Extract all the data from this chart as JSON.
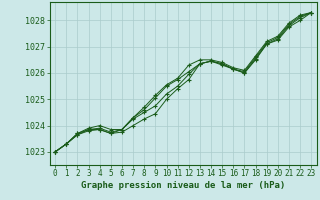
{
  "bg_color": "#cce8e8",
  "grid_color": "#aacccc",
  "line_color": "#1a5c1a",
  "marker_color": "#1a5c1a",
  "title": "Graphe pression niveau de la mer (hPa)",
  "title_color": "#1a5c1a",
  "xlim": [
    -0.5,
    23.5
  ],
  "ylim": [
    1022.5,
    1028.7
  ],
  "yticks": [
    1023,
    1024,
    1025,
    1026,
    1027,
    1028
  ],
  "xticks": [
    0,
    1,
    2,
    3,
    4,
    5,
    6,
    7,
    8,
    9,
    10,
    11,
    12,
    13,
    14,
    15,
    16,
    17,
    18,
    19,
    20,
    21,
    22,
    23
  ],
  "series": [
    [
      1023.0,
      1023.3,
      1023.7,
      1023.85,
      1023.85,
      1023.7,
      1023.75,
      1024.0,
      1024.25,
      1024.45,
      1025.0,
      1025.4,
      1025.75,
      1026.35,
      1026.45,
      1026.35,
      1026.15,
      1026.0,
      1026.5,
      1027.1,
      1027.25,
      1027.75,
      1028.0,
      1028.3
    ],
    [
      1023.0,
      1023.3,
      1023.7,
      1023.9,
      1024.0,
      1023.85,
      1023.85,
      1024.25,
      1024.5,
      1024.75,
      1025.2,
      1025.5,
      1025.95,
      1026.35,
      1026.45,
      1026.3,
      1026.15,
      1026.0,
      1026.55,
      1027.1,
      1027.3,
      1027.8,
      1028.1,
      1028.3
    ],
    [
      1023.0,
      1023.3,
      1023.65,
      1023.85,
      1023.9,
      1023.75,
      1023.85,
      1024.3,
      1024.6,
      1025.05,
      1025.5,
      1025.75,
      1026.05,
      1026.35,
      1026.45,
      1026.35,
      1026.15,
      1026.05,
      1026.6,
      1027.15,
      1027.35,
      1027.85,
      1028.15,
      1028.3
    ],
    [
      1023.0,
      1023.3,
      1023.65,
      1023.8,
      1023.85,
      1023.7,
      1023.85,
      1024.3,
      1024.7,
      1025.15,
      1025.55,
      1025.8,
      1026.3,
      1026.5,
      1026.5,
      1026.4,
      1026.2,
      1026.1,
      1026.65,
      1027.2,
      1027.4,
      1027.9,
      1028.2,
      1028.3
    ]
  ]
}
